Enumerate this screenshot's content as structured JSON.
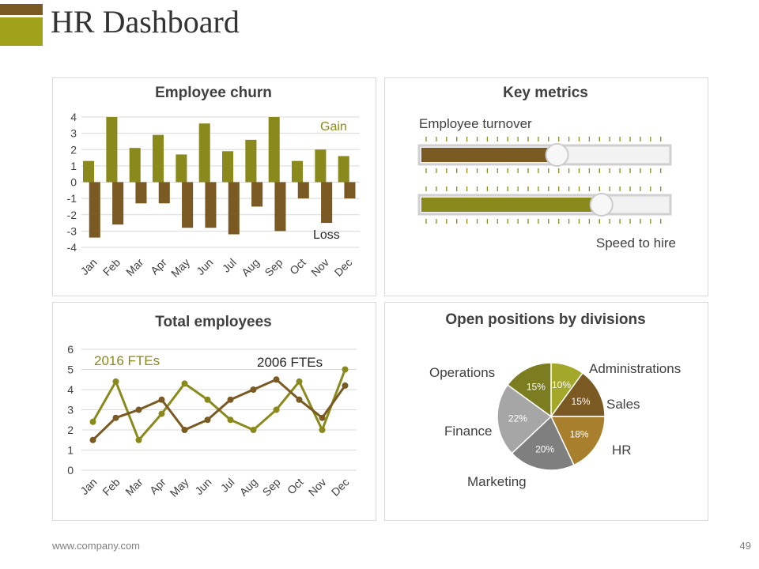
{
  "header": {
    "title": "HR Dashboard"
  },
  "footer": {
    "url": "www.company.com",
    "page": "49"
  },
  "chart_data": [
    {
      "type": "bar",
      "title": "Employee churn",
      "categories": [
        "Jan",
        "Feb",
        "Mar",
        "Apr",
        "May",
        "Jun",
        "Jul",
        "Aug",
        "Sep",
        "Oct",
        "Nov",
        "Dec"
      ],
      "series": [
        {
          "name": "Gain",
          "color": "#8a8a1c",
          "values": [
            1.3,
            4,
            2.1,
            2.9,
            1.7,
            3.6,
            1.9,
            2.6,
            4,
            1.3,
            2,
            1.6
          ]
        },
        {
          "name": "Loss",
          "color": "#7a5a22",
          "values": [
            -3.4,
            -2.6,
            -1.3,
            -1.3,
            -2.8,
            -2.8,
            -3.2,
            -1.5,
            -3,
            -1,
            -2.5,
            -1
          ]
        }
      ],
      "yticks": [
        4,
        3,
        2,
        1,
        0,
        -1,
        -2,
        -3,
        -4
      ],
      "ylim": [
        -4,
        4
      ],
      "legend": {
        "gain_label": "Gain",
        "loss_label": "Loss"
      }
    },
    {
      "type": "bar",
      "title": "Key metrics",
      "metrics": [
        {
          "name": "Employee turnover",
          "value": 0.55,
          "color": "#7a5a22"
        },
        {
          "name": "Speed to hire",
          "value": 0.73,
          "color": "#8a8a1c"
        }
      ]
    },
    {
      "type": "line",
      "title": "Total employees",
      "categories": [
        "Jan",
        "Feb",
        "Mar",
        "Apr",
        "May",
        "Jun",
        "Jul",
        "Aug",
        "Sep",
        "Oct",
        "Nov",
        "Dec"
      ],
      "series": [
        {
          "name": "2016 FTEs",
          "color": "#8a8a1c",
          "values": [
            2.4,
            4.4,
            1.5,
            2.8,
            4.3,
            3.5,
            2.5,
            2.0,
            3.0,
            4.4,
            2.0,
            5.0
          ]
        },
        {
          "name": "2006 FTEs",
          "color": "#7a5a22",
          "values": [
            1.5,
            2.6,
            3.0,
            3.5,
            2.0,
            2.5,
            3.5,
            4.0,
            4.5,
            3.5,
            2.6,
            4.2
          ]
        }
      ],
      "yticks": [
        6,
        5,
        4,
        3,
        2,
        1,
        0
      ],
      "ylim": [
        0,
        6
      ]
    },
    {
      "type": "pie",
      "title": "Open positions by divisions",
      "slices": [
        {
          "label": "Administrations",
          "value": 10,
          "pct": "10%",
          "color": "#a3a82a"
        },
        {
          "label": "Sales",
          "value": 15,
          "pct": "15%",
          "color": "#7a5a22"
        },
        {
          "label": "HR",
          "value": 18,
          "pct": "18%",
          "color": "#a8802d"
        },
        {
          "label": "Marketing",
          "value": 20,
          "pct": "20%",
          "color": "#7f7f7f"
        },
        {
          "label": "Finance",
          "value": 22,
          "pct": "22%",
          "color": "#a6a6a6"
        },
        {
          "label": "Operations",
          "value": 15,
          "pct": "15%",
          "color": "#7c7c20"
        }
      ]
    }
  ]
}
